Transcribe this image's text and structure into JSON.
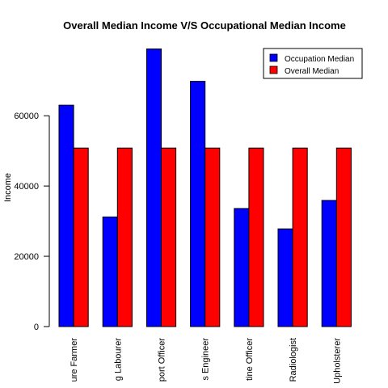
{
  "chart_data": {
    "type": "bar",
    "title": "Overall Median Income V/S Occupational Median Income",
    "xlabel": "",
    "ylabel": "Income",
    "categories": [
      "ure Farmer",
      "g Labourer",
      "port Officer",
      "s Engineer",
      "tine Officer",
      "Radiologist",
      "Upholsterer"
    ],
    "series": [
      {
        "name": "Occupation Median",
        "color": "#0000ff",
        "values": [
          63000,
          31200,
          79000,
          69800,
          33600,
          27800,
          35900
        ]
      },
      {
        "name": "Overall Median",
        "color": "#ff0000",
        "values": [
          50800,
          50800,
          50800,
          50800,
          50800,
          50800,
          50800
        ]
      }
    ],
    "ylim": [
      0,
      80000
    ],
    "yticks": [
      "0",
      "20000",
      "40000",
      "60000"
    ],
    "grid": false,
    "legend_position": "top-right"
  }
}
